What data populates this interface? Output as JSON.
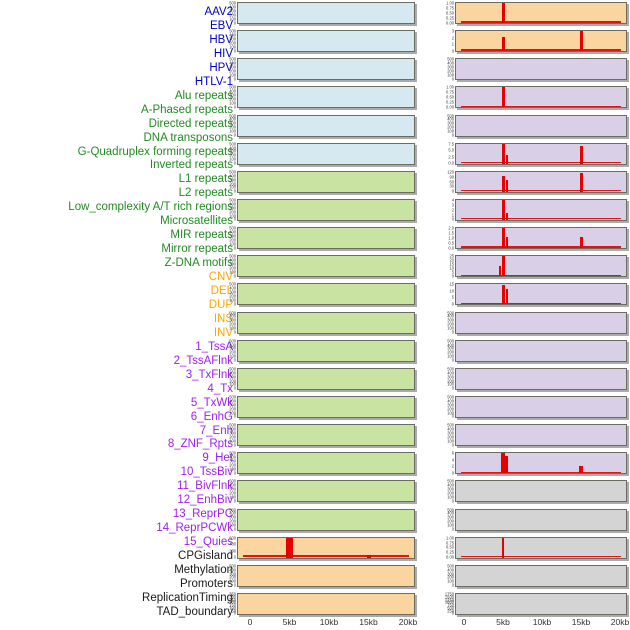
{
  "groups": {
    "virus": {
      "label_color": "#0000CD",
      "fill": "#D6E8F0"
    },
    "repeat": {
      "label_color": "#228B22",
      "fill": "#C9E3A3"
    },
    "sv": {
      "label_color": "#FFA500",
      "fill": "#FBD5A0"
    },
    "chromatin": {
      "label_color": "#A020F0",
      "fill": "#D9D0E8"
    },
    "other": {
      "label_color": "#1A1A1A",
      "fill": "#D4D4D4"
    }
  },
  "colors": {
    "peak_red": "#E60000",
    "panel_border": "#6B6B62",
    "panel_shadow": "#ABABAB",
    "tick_text": "#3A3A3A",
    "axis_text": "#333333",
    "background": "#FFFFFF"
  },
  "tracks": [
    {
      "label": "AAV2",
      "group": "virus"
    },
    {
      "label": "EBV",
      "group": "virus"
    },
    {
      "label": "HBV",
      "group": "virus"
    },
    {
      "label": "HIV",
      "group": "virus"
    },
    {
      "label": "HPV",
      "group": "virus"
    },
    {
      "label": "HTLV-1",
      "group": "virus"
    },
    {
      "label": "Alu repeats",
      "group": "repeat"
    },
    {
      "label": "A-Phased repeats",
      "group": "repeat"
    },
    {
      "label": "Directed repeats",
      "group": "repeat"
    },
    {
      "label": "DNA transposons",
      "group": "repeat"
    },
    {
      "label": "G-Quadruplex forming repeats",
      "group": "repeat"
    },
    {
      "label": "Inverted repeats",
      "group": "repeat"
    },
    {
      "label": "L1 repeats",
      "group": "repeat"
    },
    {
      "label": "L2 repeats",
      "group": "repeat"
    },
    {
      "label": "Low_complexity A/T rich regions",
      "group": "repeat"
    },
    {
      "label": "Microsatellites",
      "group": "repeat"
    },
    {
      "label": "MIR repeats",
      "group": "repeat"
    },
    {
      "label": "Mirror repeats",
      "group": "repeat"
    },
    {
      "label": "Z-DNA motifs",
      "group": "repeat"
    },
    {
      "label": "CNV",
      "group": "sv"
    },
    {
      "label": "DEL",
      "group": "sv"
    },
    {
      "label": "DUP",
      "group": "sv"
    },
    {
      "label": "INS",
      "group": "sv"
    },
    {
      "label": "INV",
      "group": "sv"
    },
    {
      "label": "1_TssA",
      "group": "chromatin"
    },
    {
      "label": "2_TssAFlnk",
      "group": "chromatin"
    },
    {
      "label": "3_TxFlnk",
      "group": "chromatin"
    },
    {
      "label": "4_Tx",
      "group": "chromatin"
    },
    {
      "label": "5_TxWk",
      "group": "chromatin"
    },
    {
      "label": "6_EnhG",
      "group": "chromatin"
    },
    {
      "label": "7_Enh",
      "group": "chromatin"
    },
    {
      "label": "8_ZNF_Rpts",
      "group": "chromatin"
    },
    {
      "label": "9_Het",
      "group": "chromatin"
    },
    {
      "label": "10_TssBiv",
      "group": "chromatin"
    },
    {
      "label": "11_BivFlnk",
      "group": "chromatin"
    },
    {
      "label": "12_EnhBiv",
      "group": "chromatin"
    },
    {
      "label": "13_ReprPC",
      "group": "chromatin"
    },
    {
      "label": "14_ReprPCWk",
      "group": "chromatin"
    },
    {
      "label": "15_Quies",
      "group": "chromatin"
    },
    {
      "label": "CPGisland",
      "group": "other"
    },
    {
      "label": "Methylation",
      "group": "other"
    },
    {
      "label": "Promoters",
      "group": "other"
    },
    {
      "label": "ReplicationTiming",
      "group": "other"
    },
    {
      "label": "TAD_boundary",
      "group": "other"
    }
  ],
  "x_axis": {
    "unit": "kb",
    "range_kb": [
      0,
      20
    ],
    "ticks": [
      {
        "kb": 0,
        "label": "0"
      },
      {
        "kb": 5,
        "label": "5kb"
      },
      {
        "kb": 10,
        "label": "10kb"
      },
      {
        "kb": 15,
        "label": "15kb"
      },
      {
        "kb": 20,
        "label": "20kb"
      }
    ]
  },
  "chart_data": {
    "type": "bar",
    "x_range_kb": [
      0,
      20
    ],
    "grid": false,
    "legend": false,
    "columns": {
      "left": [
        {
          "track": "AAV2",
          "group": "virus",
          "yticks": [
            "500",
            "400",
            "300",
            "200",
            "100",
            "0"
          ],
          "ymax": null,
          "baseline": false,
          "peaks": []
        },
        {
          "track": "EBV",
          "group": "virus",
          "yticks": [
            "500",
            "400",
            "300",
            "200",
            "100",
            "0"
          ],
          "ymax": null,
          "baseline": false,
          "peaks": []
        },
        {
          "track": "HBV",
          "group": "virus",
          "yticks": [
            "500",
            "400",
            "300",
            "200",
            "100",
            "0"
          ],
          "ymax": null,
          "baseline": false,
          "peaks": []
        },
        {
          "track": "HIV",
          "group": "virus",
          "yticks": [
            "500",
            "400",
            "300",
            "200",
            "100",
            "0"
          ],
          "ymax": null,
          "baseline": false,
          "peaks": []
        },
        {
          "track": "HPV",
          "group": "virus",
          "yticks": [
            "500",
            "400",
            "300",
            "200",
            "100",
            "0"
          ],
          "ymax": null,
          "baseline": false,
          "peaks": []
        },
        {
          "track": "HTLV-1",
          "group": "virus",
          "yticks": [
            "500",
            "400",
            "300",
            "200",
            "100",
            "0"
          ],
          "ymax": null,
          "baseline": false,
          "peaks": []
        },
        {
          "track": "Alu repeats",
          "group": "repeat",
          "yticks": [
            "500",
            "400",
            "300",
            "200",
            "100",
            "0"
          ],
          "ymax": null,
          "baseline": false,
          "peaks": []
        },
        {
          "track": "A-Phased repeats",
          "group": "repeat",
          "yticks": [
            "500",
            "400",
            "300",
            "200",
            "100",
            "0"
          ],
          "ymax": null,
          "baseline": false,
          "peaks": []
        },
        {
          "track": "Directed repeats",
          "group": "repeat",
          "yticks": [
            "500",
            "400",
            "300",
            "200",
            "100",
            "0"
          ],
          "ymax": null,
          "baseline": false,
          "peaks": []
        },
        {
          "track": "DNA transposons",
          "group": "repeat",
          "yticks": [
            "500",
            "400",
            "300",
            "200",
            "100",
            "0"
          ],
          "ymax": null,
          "baseline": false,
          "peaks": []
        },
        {
          "track": "G-Quadruplex forming repeats",
          "group": "repeat",
          "yticks": [
            "500",
            "400",
            "300",
            "200",
            "100",
            "0"
          ],
          "ymax": null,
          "baseline": false,
          "peaks": []
        },
        {
          "track": "Inverted repeats",
          "group": "repeat",
          "yticks": [
            "500",
            "400",
            "300",
            "200",
            "100",
            "0"
          ],
          "ymax": null,
          "baseline": false,
          "peaks": []
        },
        {
          "track": "L1 repeats",
          "group": "repeat",
          "yticks": [
            "500",
            "400",
            "300",
            "200",
            "100",
            "0"
          ],
          "ymax": null,
          "baseline": false,
          "peaks": []
        },
        {
          "track": "L2 repeats",
          "group": "repeat",
          "yticks": [
            "500",
            "400",
            "300",
            "200",
            "100",
            "0"
          ],
          "ymax": null,
          "baseline": false,
          "peaks": []
        },
        {
          "track": "Low_complexity A/T rich regions",
          "group": "repeat",
          "yticks": [
            "500",
            "400",
            "300",
            "200",
            "100",
            "0"
          ],
          "ymax": null,
          "baseline": false,
          "peaks": []
        },
        {
          "track": "Microsatellites",
          "group": "repeat",
          "yticks": [
            "500",
            "400",
            "300",
            "200",
            "100",
            "0"
          ],
          "ymax": null,
          "baseline": false,
          "peaks": []
        },
        {
          "track": "MIR repeats",
          "group": "repeat",
          "yticks": [
            "500",
            "400",
            "300",
            "200",
            "100",
            "0"
          ],
          "ymax": null,
          "baseline": false,
          "peaks": []
        },
        {
          "track": "Mirror repeats",
          "group": "repeat",
          "yticks": [
            "500",
            "400",
            "300",
            "200",
            "100",
            "0"
          ],
          "ymax": null,
          "baseline": false,
          "peaks": []
        },
        {
          "track": "Z-DNA motifs",
          "group": "repeat",
          "yticks": [
            "500",
            "400",
            "300",
            "200",
            "100",
            "0"
          ],
          "ymax": null,
          "baseline": false,
          "peaks": []
        },
        {
          "track": "CNV",
          "group": "sv",
          "yticks": [
            "600",
            "400",
            "200",
            "0"
          ],
          "ymax": 660,
          "baseline": true,
          "peaks": [
            {
              "kb": 5,
              "value": 660,
              "w": 7
            },
            {
              "kb": 15,
              "value": 85,
              "w": 4
            }
          ]
        },
        {
          "track": "DEL",
          "group": "sv",
          "yticks": [
            "500",
            "400",
            "300",
            "200",
            "100",
            "0"
          ],
          "ymax": null,
          "baseline": false,
          "peaks": []
        },
        {
          "track": "DUP",
          "group": "sv",
          "yticks": [
            "350",
            "300",
            "250",
            "200",
            "150",
            "100",
            "50",
            "0"
          ],
          "ymax": null,
          "baseline": false,
          "peaks": []
        }
      ],
      "right": [
        {
          "track": "INS",
          "group": "sv",
          "yticks": [
            "1.00",
            "0.75",
            "0.50",
            "0.25",
            "0.00"
          ],
          "ymax": 1.05,
          "baseline": true,
          "peaks": [
            {
              "kb": 5,
              "value": 1.05,
              "w": 3
            }
          ]
        },
        {
          "track": "INV",
          "group": "sv",
          "yticks": [
            "3",
            "2",
            "1",
            "0"
          ],
          "ymax": 3.2,
          "baseline": true,
          "peaks": [
            {
              "kb": 5,
              "value": 2.2,
              "w": 3
            },
            {
              "kb": 15,
              "value": 3.2,
              "w": 3
            }
          ]
        },
        {
          "track": "1_TssA",
          "group": "chromatin",
          "yticks": [
            "500",
            "400",
            "300",
            "200",
            "100",
            "0"
          ],
          "ymax": null,
          "baseline": false,
          "peaks": []
        },
        {
          "track": "2_TssAFlnk",
          "group": "chromatin",
          "yticks": [
            "1.00",
            "0.75",
            "0.50",
            "0.25",
            "0.00"
          ],
          "ymax": 1.05,
          "baseline": true,
          "peaks": [
            {
              "kb": 5,
              "value": 1.05,
              "w": 3
            }
          ]
        },
        {
          "track": "3_TxFlnk",
          "group": "chromatin",
          "yticks": [
            "500",
            "400",
            "300",
            "200",
            "100",
            "0"
          ],
          "ymax": null,
          "baseline": false,
          "peaks": []
        },
        {
          "track": "4_Tx",
          "group": "chromatin",
          "yticks": [
            "7.5",
            "5.0",
            "2.5",
            "0.0"
          ],
          "ymax": 8.2,
          "baseline": true,
          "peaks": [
            {
              "kb": 5,
              "value": 8.2,
              "w": 3
            },
            {
              "kb": 5.5,
              "value": 3.6,
              "w": 2
            },
            {
              "kb": 15,
              "value": 7.0,
              "w": 3
            }
          ]
        },
        {
          "track": "5_TxWk",
          "group": "chromatin",
          "yticks": [
            "120",
            "90",
            "60",
            "30",
            "0"
          ],
          "ymax": 128,
          "baseline": true,
          "peaks": [
            {
              "kb": 5,
              "value": 101,
              "w": 3
            },
            {
              "kb": 5.5,
              "value": 74,
              "w": 2
            },
            {
              "kb": 15,
              "value": 117,
              "w": 3
            }
          ]
        },
        {
          "track": "6_EnhG",
          "group": "chromatin",
          "yticks": [
            "4",
            "3",
            "2",
            "1",
            "0"
          ],
          "ymax": 4.4,
          "baseline": true,
          "peaks": [
            {
              "kb": 5,
              "value": 4.4,
              "w": 3
            },
            {
              "kb": 5.5,
              "value": 1.5,
              "w": 2
            }
          ]
        },
        {
          "track": "7_Enh",
          "group": "chromatin",
          "yticks": [
            "2.0",
            "1.5",
            "1.0",
            "0.5",
            "0.0"
          ],
          "ymax": 2.15,
          "baseline": true,
          "peaks": [
            {
              "kb": 5,
              "value": 2.15,
              "w": 3
            },
            {
              "kb": 5.5,
              "value": 1.2,
              "w": 2
            },
            {
              "kb": 15,
              "value": 1.15,
              "w": 3
            }
          ]
        },
        {
          "track": "8_ZNF_Rpts",
          "group": "chromatin",
          "yticks": [
            "25",
            "20",
            "15",
            "10",
            "5",
            "0"
          ],
          "ymax": 26.5,
          "baseline": true,
          "peaks": [
            {
              "kb": 4.6,
              "value": 13,
              "w": 2
            },
            {
              "kb": 5,
              "value": 26.5,
              "w": 3
            }
          ]
        },
        {
          "track": "9_Het",
          "group": "chromatin",
          "yticks": [
            "15",
            "10",
            "5",
            "0"
          ],
          "ymax": 16,
          "baseline": true,
          "peaks": [
            {
              "kb": 5,
              "value": 15,
              "w": 3
            },
            {
              "kb": 5.5,
              "value": 12,
              "w": 2
            }
          ]
        },
        {
          "track": "10_TssBiv",
          "group": "chromatin",
          "yticks": [
            "500",
            "400",
            "300",
            "200",
            "100",
            "0"
          ],
          "ymax": null,
          "baseline": false,
          "peaks": []
        },
        {
          "track": "11_BivFlnk",
          "group": "chromatin",
          "yticks": [
            "500",
            "400",
            "300",
            "200",
            "100",
            "0"
          ],
          "ymax": null,
          "baseline": false,
          "peaks": []
        },
        {
          "track": "12_EnhBiv",
          "group": "chromatin",
          "yticks": [
            "500",
            "400",
            "300",
            "200",
            "100",
            "0"
          ],
          "ymax": null,
          "baseline": false,
          "peaks": []
        },
        {
          "track": "13_ReprPC",
          "group": "chromatin",
          "yticks": [
            "500",
            "400",
            "300",
            "200",
            "100",
            "0"
          ],
          "ymax": null,
          "baseline": false,
          "peaks": []
        },
        {
          "track": "14_ReprPCWk",
          "group": "chromatin",
          "yticks": [
            "500",
            "400",
            "300",
            "200",
            "100",
            "0"
          ],
          "ymax": null,
          "baseline": false,
          "peaks": []
        },
        {
          "track": "15_Quies",
          "group": "chromatin",
          "yticks": [
            "6",
            "4",
            "2",
            "0"
          ],
          "ymax": 7.2,
          "baseline": true,
          "peaks": [
            {
              "kb": 5,
              "value": 7.2,
              "w": 4
            },
            {
              "kb": 5.45,
              "value": 6.1,
              "w": 3
            },
            {
              "kb": 15,
              "value": 2.5,
              "w": 4
            }
          ]
        },
        {
          "track": "CPGisland",
          "group": "other",
          "yticks": [
            "500",
            "400",
            "300",
            "200",
            "100",
            "0"
          ],
          "ymax": null,
          "baseline": false,
          "peaks": []
        },
        {
          "track": "Methylation",
          "group": "other",
          "yticks": [
            "500",
            "400",
            "300",
            "200",
            "100",
            "0"
          ],
          "ymax": null,
          "baseline": false,
          "peaks": []
        },
        {
          "track": "Promoters",
          "group": "other",
          "yticks": [
            "1.00",
            "0.75",
            "0.50",
            "0.25",
            "0.00"
          ],
          "ymax": 1.05,
          "baseline": true,
          "peaks": [
            {
              "kb": 5,
              "value": 1.05,
              "w": 2
            }
          ]
        },
        {
          "track": "ReplicationTiming",
          "group": "other",
          "yticks": [
            "500",
            "400",
            "300",
            "200",
            "100",
            "0"
          ],
          "ymax": null,
          "baseline": false,
          "peaks": []
        },
        {
          "track": "TAD_boundary",
          "group": "other",
          "yticks": [
            "1750",
            "1500",
            "1250",
            "1000",
            "750",
            "500",
            "250",
            "0"
          ],
          "ymax": null,
          "baseline": false,
          "peaks": []
        }
      ]
    }
  }
}
